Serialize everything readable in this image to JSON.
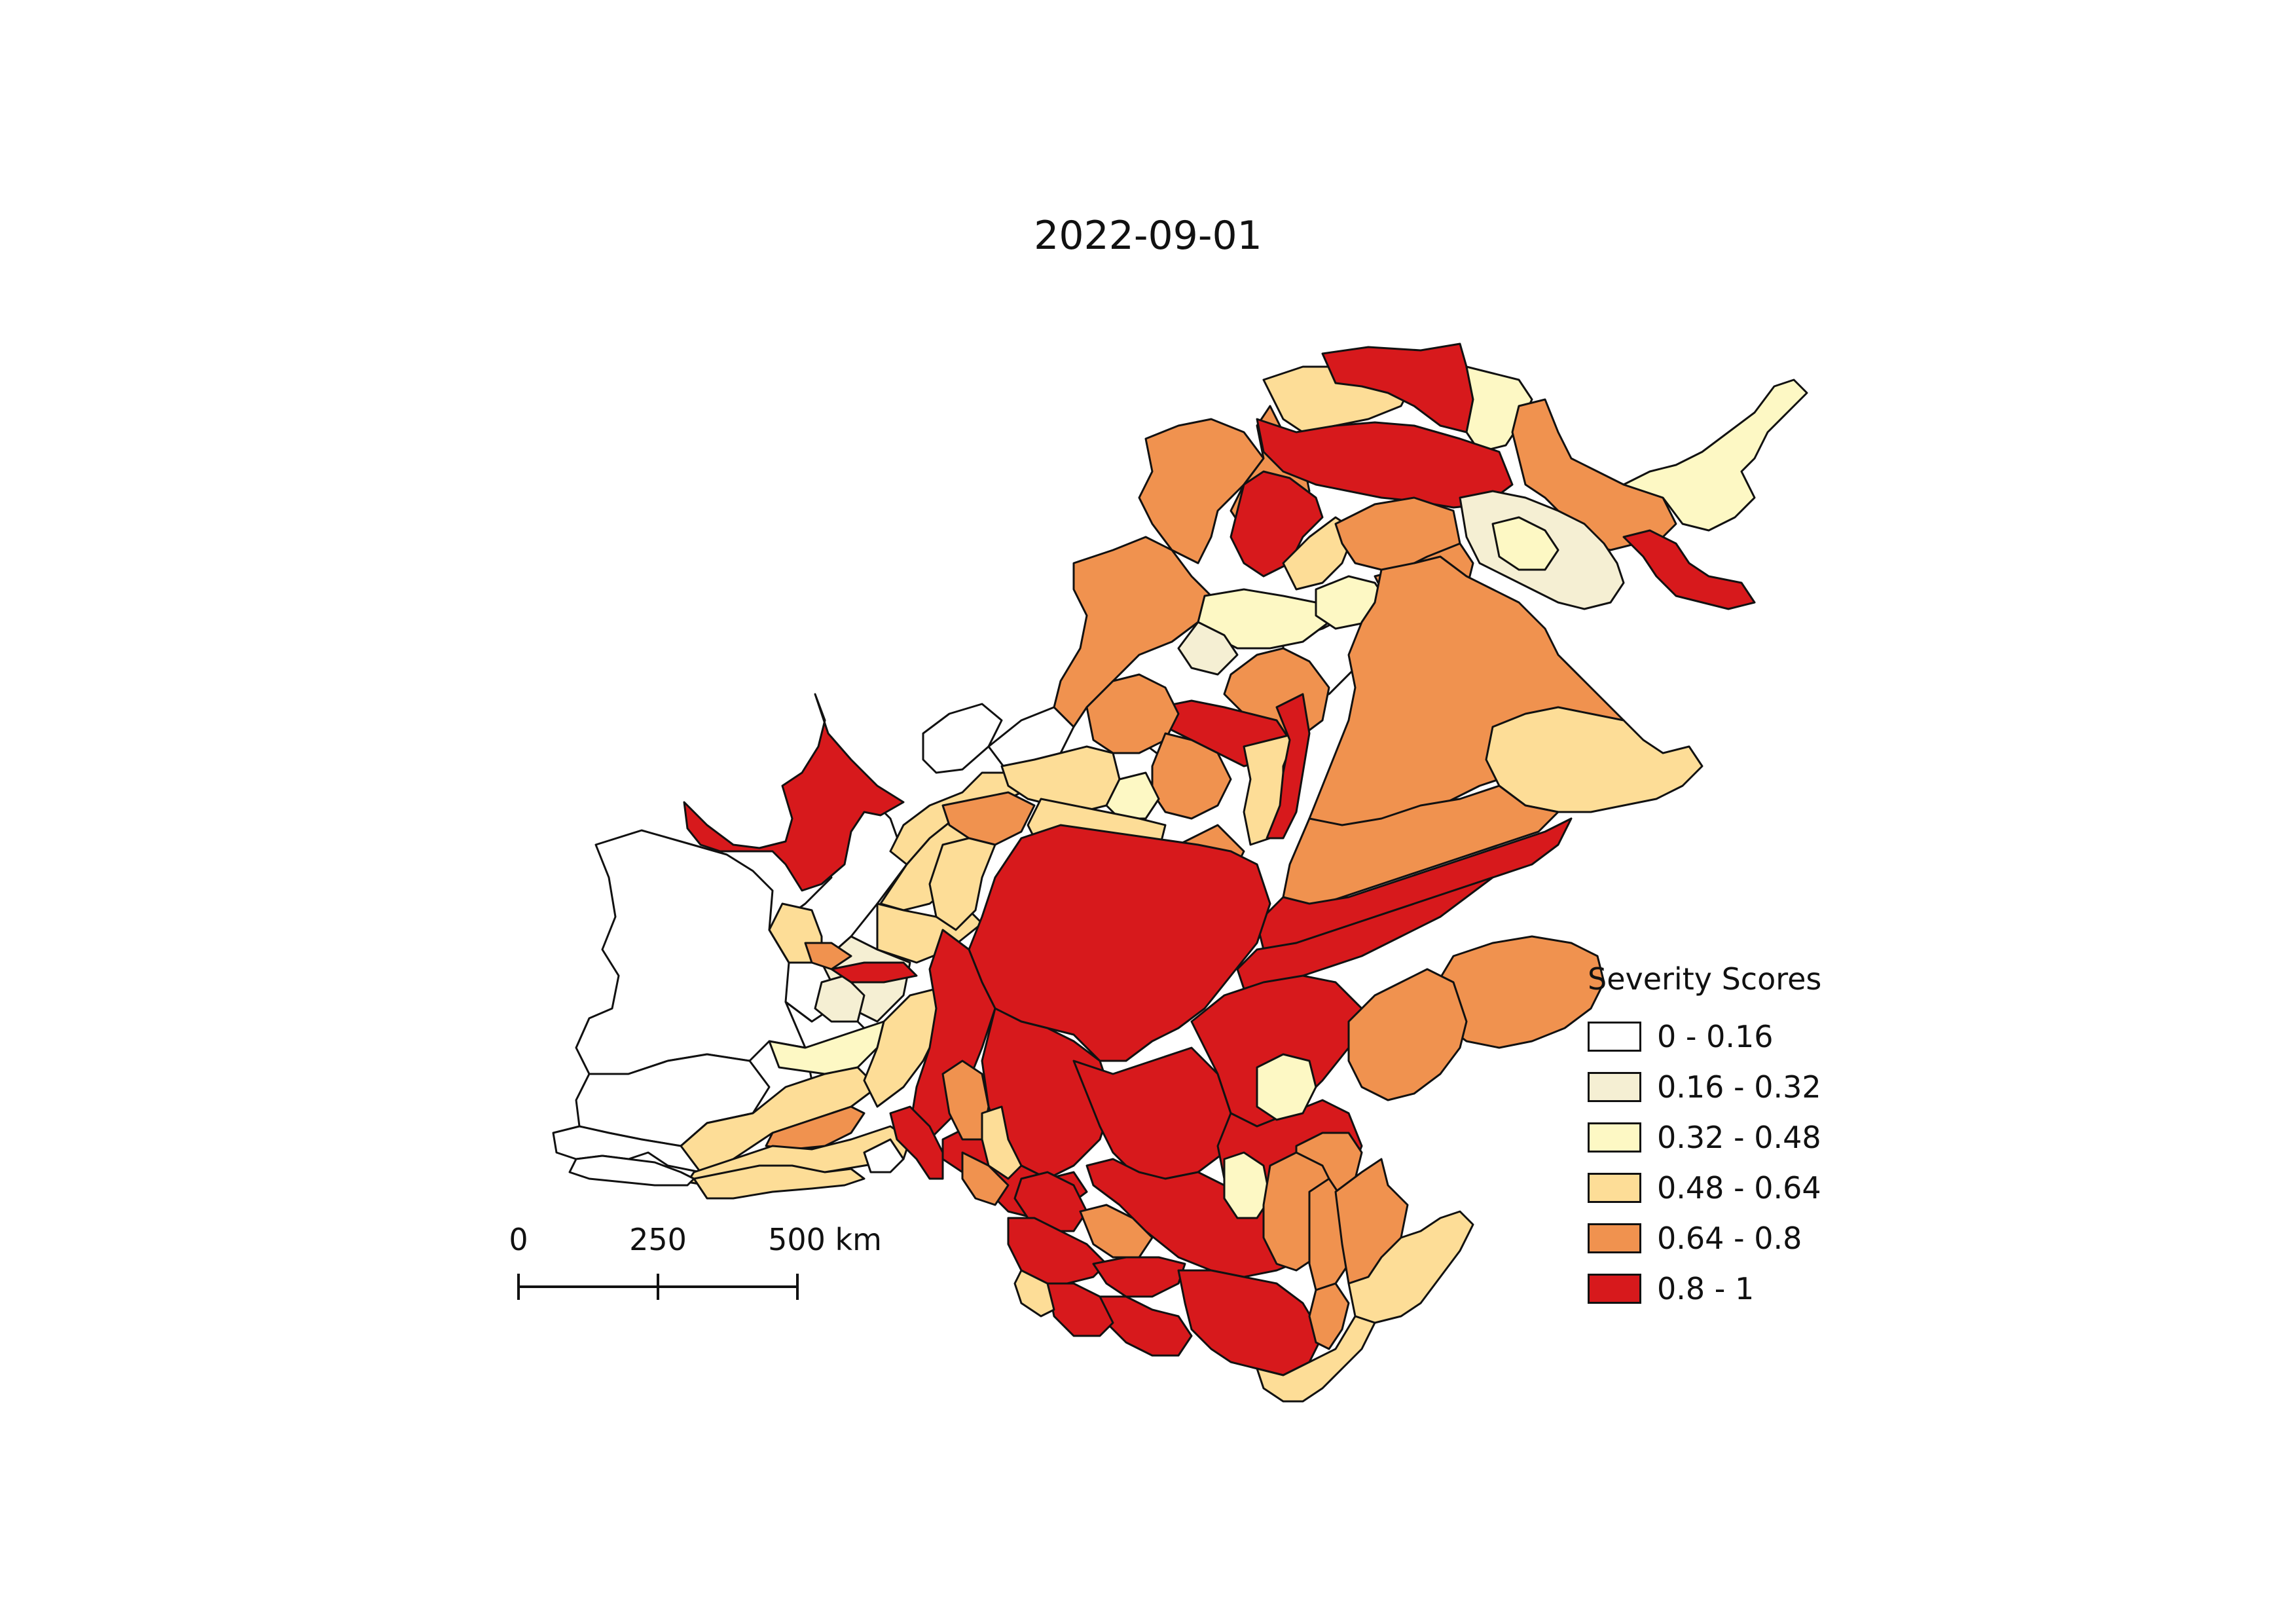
{
  "title": "2022-09-01",
  "legend": {
    "title": "Severity Scores",
    "items": [
      {
        "label": "0 - 0.16",
        "color": "#ffffff"
      },
      {
        "label": "0.16 - 0.32",
        "color": "#f5efd3"
      },
      {
        "label": "0.32 - 0.48",
        "color": "#fdf8c4"
      },
      {
        "label": "0.48 - 0.64",
        "color": "#fddd97"
      },
      {
        "label": "0.64 - 0.8",
        "color": "#f0924f"
      },
      {
        "label": "0.8 - 1",
        "color": "#d7191c"
      }
    ]
  },
  "scale_bar": {
    "labels": [
      "0",
      "250",
      "500 km"
    ]
  }
}
